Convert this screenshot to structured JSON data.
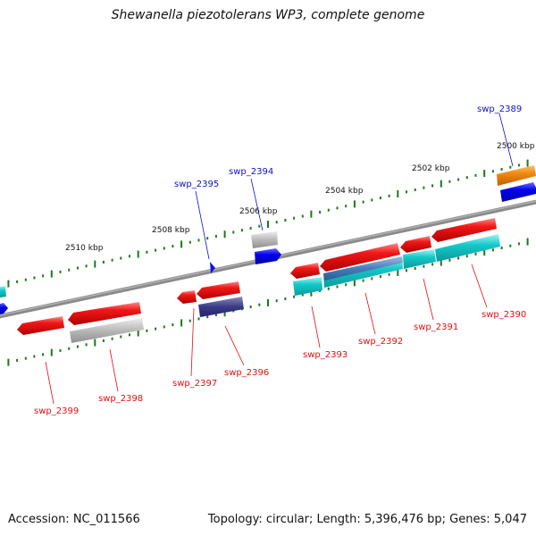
{
  "title": "Shewanella piezotolerans WP3, complete genome",
  "accession": "Accession: NC_011566",
  "stats": "Topology: circular; Length: 5,396,476 bp; Genes: 5,047",
  "colors": {
    "label_forward": "#1010c8",
    "label_reverse": "#e01010",
    "ticks": "#1a7a1a",
    "backbone": "#808080"
  },
  "scale_labels": [
    "2500 kbp",
    "2502 kbp",
    "2504 kbp",
    "2506 kbp",
    "2508 kbp",
    "2510 kbp"
  ],
  "gene_labels": {
    "forward": [
      "swp_2389",
      "swp_2394",
      "swp_2395"
    ],
    "reverse": [
      "swp_2390",
      "swp_2391",
      "swp_2392",
      "swp_2393",
      "swp_2396",
      "swp_2397",
      "swp_2398",
      "swp_2399"
    ]
  }
}
